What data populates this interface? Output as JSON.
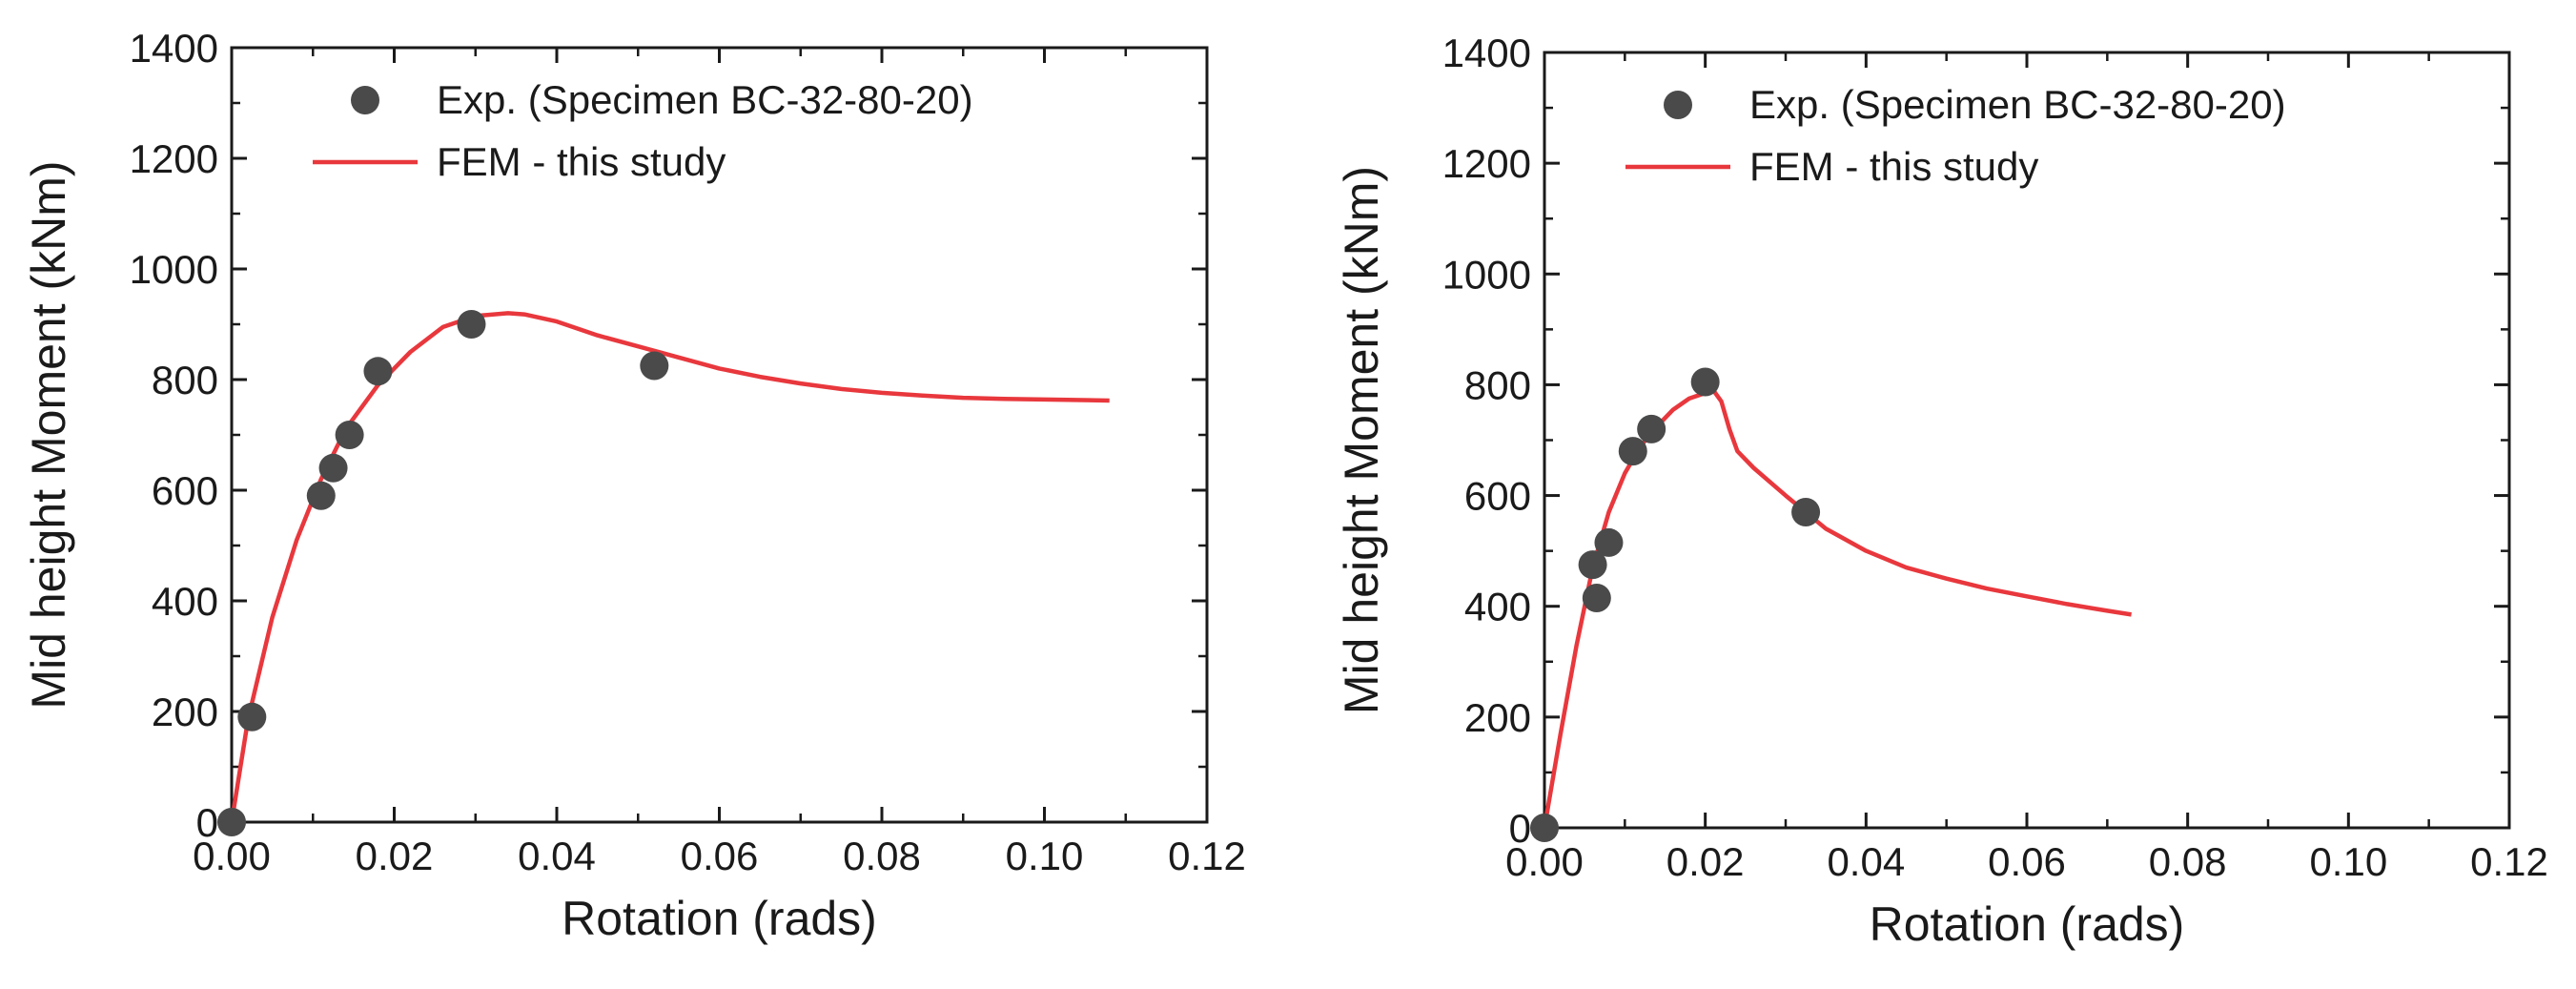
{
  "chart_data": [
    {
      "type": "scatter+line",
      "title": "",
      "xlabel": "Rotation (rads)",
      "ylabel": "Mid height Moment (kNm)",
      "xlim": [
        0,
        0.12
      ],
      "ylim": [
        0,
        1400
      ],
      "xticks": [
        "0.00",
        "0.02",
        "0.04",
        "0.06",
        "0.08",
        "0.10",
        "0.12"
      ],
      "yticks": [
        "0",
        "200",
        "400",
        "600",
        "800",
        "1000",
        "1200",
        "1400"
      ],
      "legend_position": "top-left",
      "series": [
        {
          "name": "Exp. (Specimen BC-32-80-20)",
          "kind": "scatter",
          "color": "#4a4a4a",
          "x": [
            0.0,
            0.0025,
            0.011,
            0.0125,
            0.0145,
            0.018,
            0.0295,
            0.052
          ],
          "y": [
            0,
            190,
            590,
            640,
            700,
            815,
            900,
            825
          ]
        },
        {
          "name": "FEM - this study",
          "kind": "line",
          "color": "#e8383d",
          "x": [
            0,
            0.002,
            0.005,
            0.008,
            0.011,
            0.014,
            0.018,
            0.022,
            0.026,
            0.03,
            0.034,
            0.036,
            0.04,
            0.045,
            0.05,
            0.055,
            0.06,
            0.065,
            0.07,
            0.075,
            0.08,
            0.085,
            0.09,
            0.095,
            0.1,
            0.108
          ],
          "y": [
            0,
            185,
            370,
            510,
            620,
            710,
            790,
            850,
            895,
            915,
            920,
            918,
            905,
            880,
            860,
            840,
            820,
            805,
            793,
            783,
            776,
            771,
            767,
            765,
            764,
            762
          ]
        }
      ]
    },
    {
      "type": "scatter+line",
      "title": "",
      "xlabel": "Rotation (rads)",
      "ylabel": "Mid height Moment (kNm)",
      "xlim": [
        0,
        0.12
      ],
      "ylim": [
        0,
        1400
      ],
      "xticks": [
        "0.00",
        "0.02",
        "0.04",
        "0.06",
        "0.08",
        "0.10",
        "0.12"
      ],
      "yticks": [
        "0",
        "200",
        "400",
        "600",
        "800",
        "1000",
        "1200",
        "1400"
      ],
      "legend_position": "top-left",
      "series": [
        {
          "name": "Exp. (Specimen BC-32-80-20)",
          "kind": "scatter",
          "color": "#4a4a4a",
          "x": [
            0.0,
            0.0065,
            0.006,
            0.008,
            0.011,
            0.0133,
            0.02,
            0.0325
          ],
          "y": [
            0,
            415,
            475,
            515,
            680,
            720,
            805,
            570
          ]
        },
        {
          "name": "FEM - this study",
          "kind": "line",
          "color": "#e8383d",
          "x": [
            0,
            0.002,
            0.004,
            0.006,
            0.008,
            0.01,
            0.012,
            0.014,
            0.016,
            0.018,
            0.02,
            0.021,
            0.022,
            0.023,
            0.024,
            0.026,
            0.03,
            0.035,
            0.04,
            0.045,
            0.05,
            0.055,
            0.06,
            0.065,
            0.07,
            0.073
          ],
          "y": [
            0,
            170,
            330,
            470,
            570,
            640,
            690,
            725,
            755,
            775,
            785,
            790,
            770,
            720,
            680,
            650,
            600,
            540,
            500,
            470,
            450,
            432,
            418,
            404,
            392,
            385
          ]
        }
      ]
    }
  ]
}
